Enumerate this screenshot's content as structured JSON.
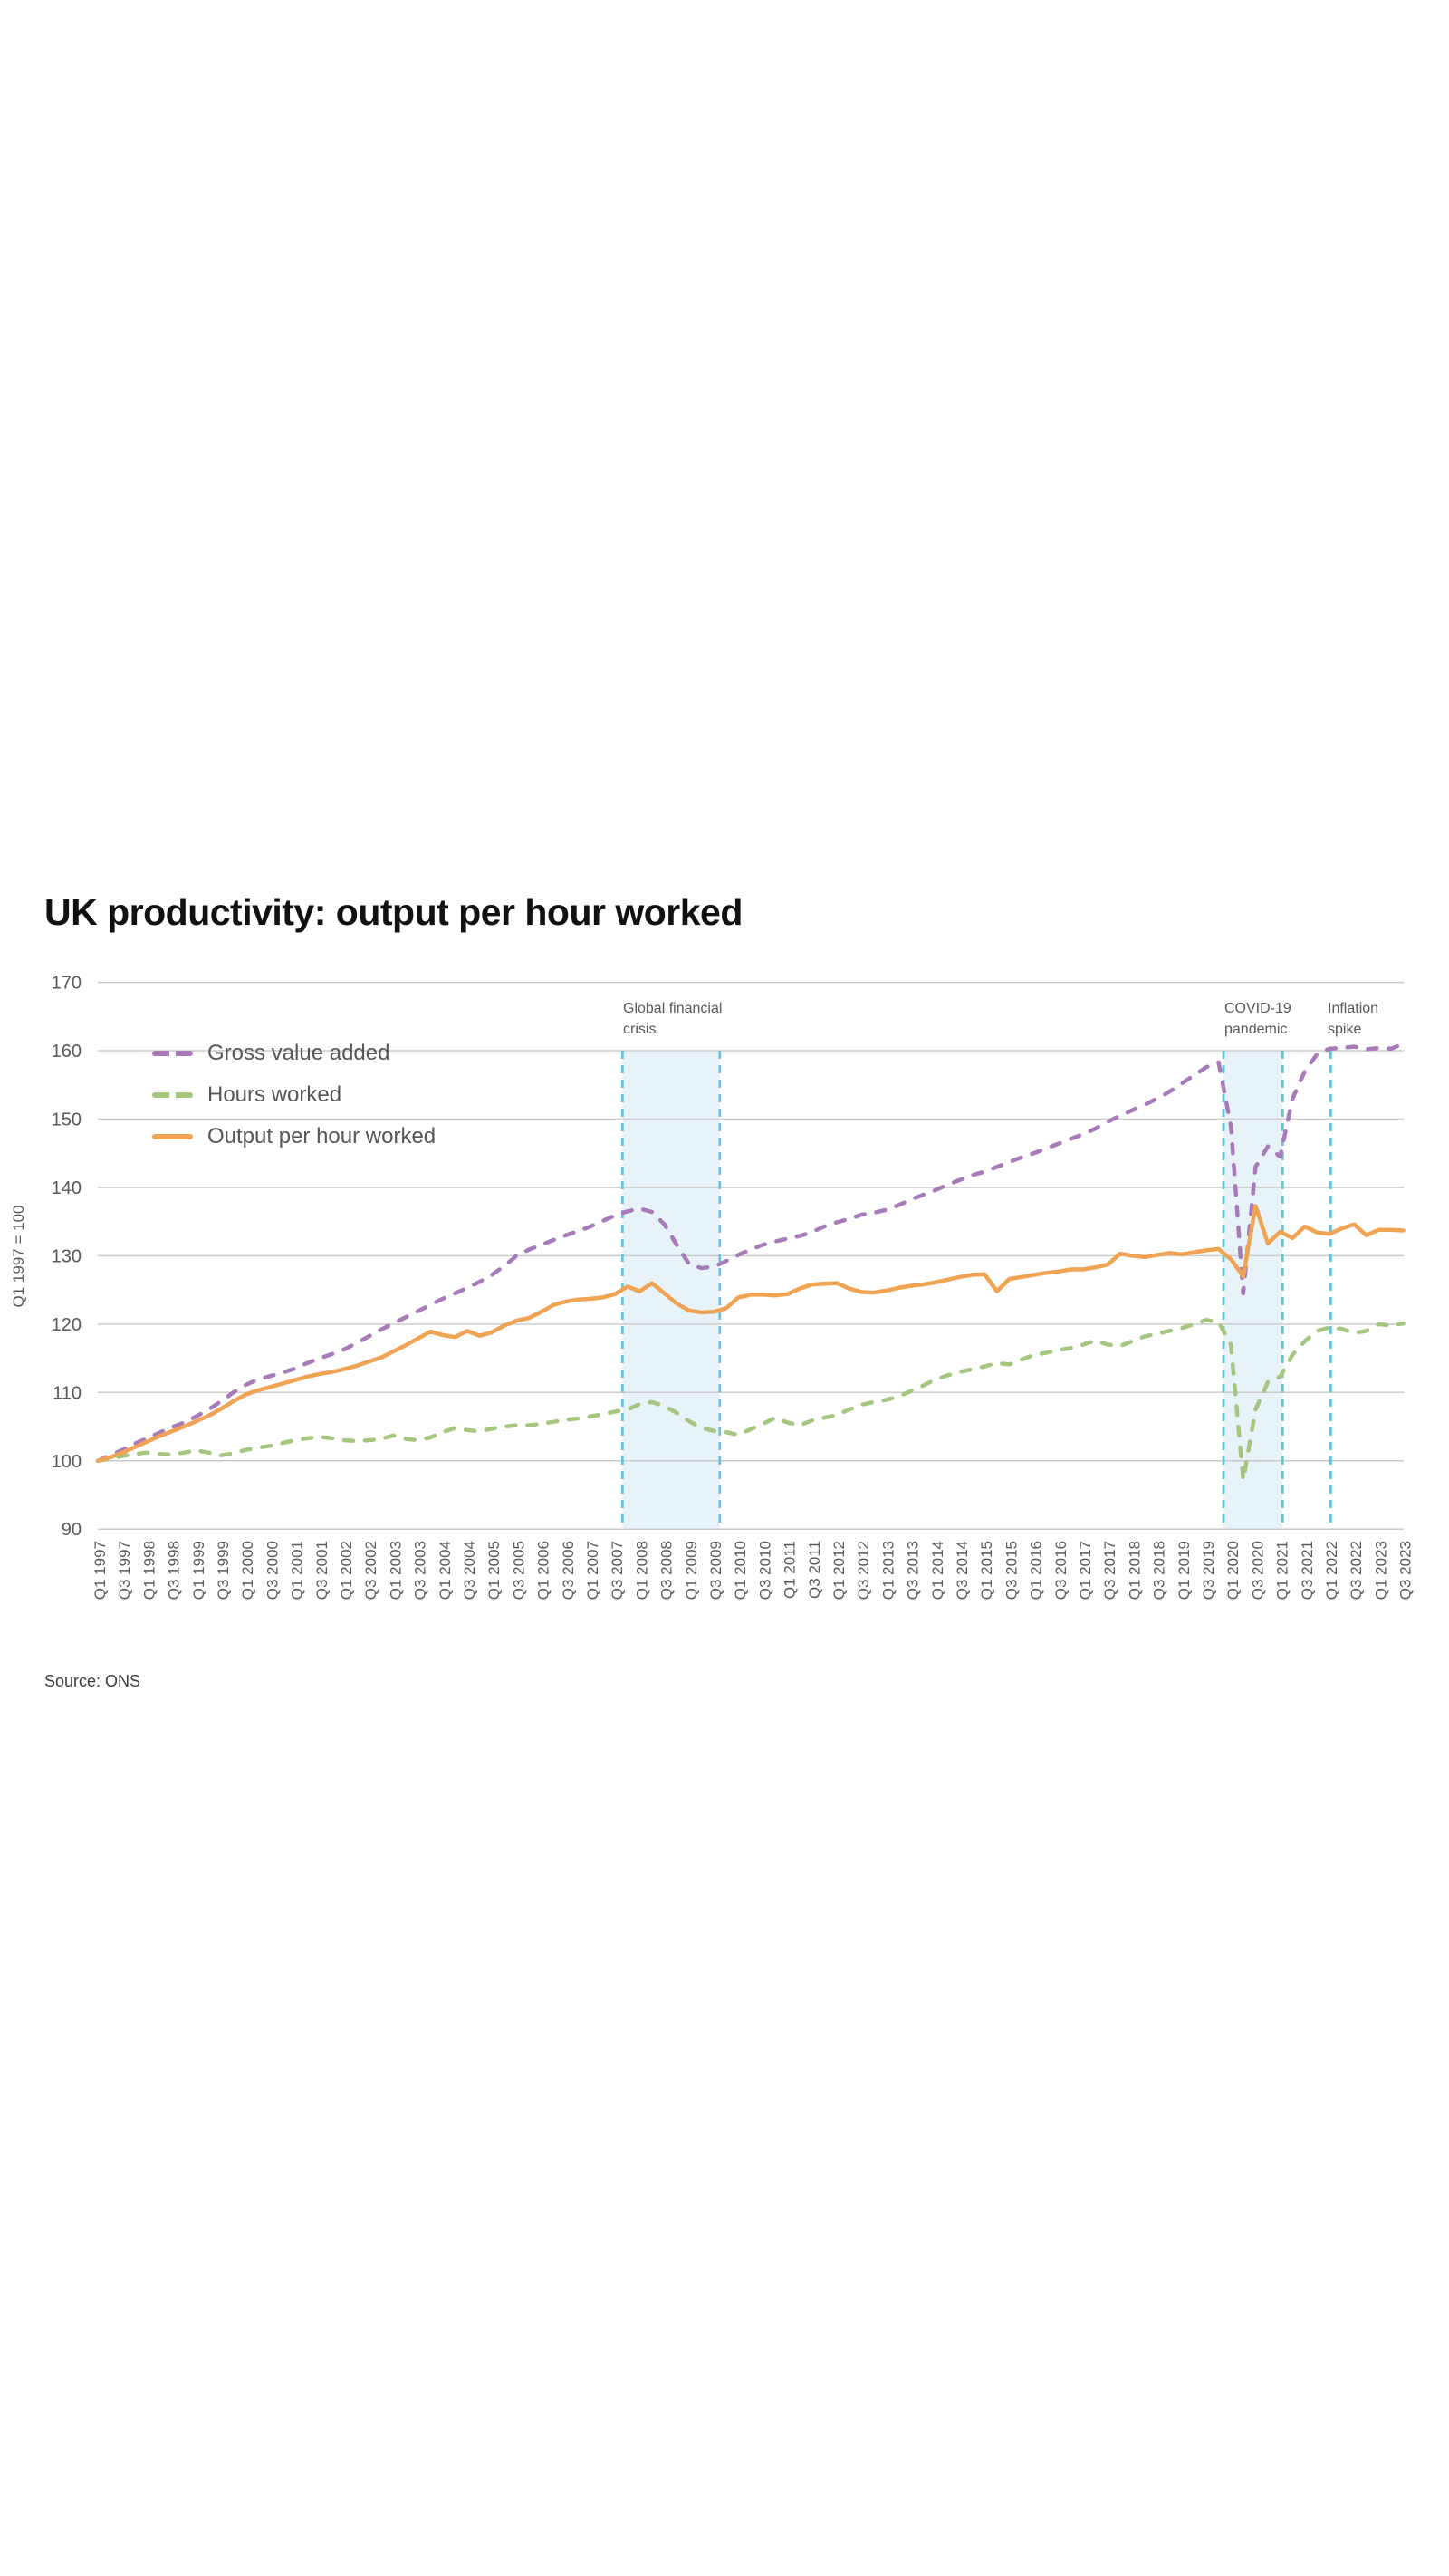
{
  "page": {
    "title": "UK productivity: output per hour worked",
    "source": "Source: ONS"
  },
  "y_axis": {
    "title": "Q1 1997 = 100",
    "min": 90,
    "max": 170,
    "step": 10
  },
  "legend": {
    "items": [
      {
        "label": "Gross value added",
        "color": "#a87ab9",
        "dashed": true
      },
      {
        "label": "Hours worked",
        "color": "#a4c67f",
        "dashed": true
      },
      {
        "label": "Output per hour worked",
        "color": "#f0a353",
        "dashed": false
      }
    ]
  },
  "annotations": [
    {
      "id": "gfc",
      "line1": "Global financial",
      "line2": "crisis"
    },
    {
      "id": "covid",
      "line1": "COVID-19",
      "line2": "pandemic"
    },
    {
      "id": "inflation",
      "line1": "Inflation",
      "line2": "spike"
    }
  ],
  "chart_data": {
    "type": "line",
    "title": "UK productivity: output per hour worked",
    "xlabel": "",
    "ylabel": "Q1 1997 = 100",
    "ylim": [
      90,
      170
    ],
    "y_step": 10,
    "grid": true,
    "grid_color": "#cbcbcb",
    "band_fill": "#e7f3f8",
    "band_border": "#68c4da",
    "x_tick_labels": [
      "Q1 1997",
      "Q3 1997",
      "Q1 1998",
      "Q3 1998",
      "Q1 1999",
      "Q3 1999",
      "Q1 2000",
      "Q3 2000",
      "Q1 2001",
      "Q3 2001",
      "Q1 2002",
      "Q3 2002",
      "Q1 2003",
      "Q3 2003",
      "Q1 2004",
      "Q3 2004",
      "Q1 2005",
      "Q3 2005",
      "Q1 2006",
      "Q3 2006",
      "Q1 2007",
      "Q3 2007",
      "Q1 2008",
      "Q3 2008",
      "Q1 2009",
      "Q3 2009",
      "Q1 2010",
      "Q3 2010",
      "Q1 2011",
      "Q3 2011",
      "Q1 2012",
      "Q3 2012",
      "Q1 2013",
      "Q3 2013",
      "Q1 2014",
      "Q3 2014",
      "Q1 2015",
      "Q3 2015",
      "Q1 2016",
      "Q3 2016",
      "Q1 2017",
      "Q3 2017",
      "Q1 2018",
      "Q3 2018",
      "Q1 2019",
      "Q3 2019",
      "Q1 2020",
      "Q3 2020",
      "Q1 2021",
      "Q3 2021",
      "Q1 2022",
      "Q3 2022",
      "Q1 2023",
      "Q3 2023"
    ],
    "bands": [
      {
        "label": "Global financial crisis",
        "start_q": 42.6,
        "end_q": 50.5
      },
      {
        "label": "COVID-19 pandemic",
        "start_q": 91.4,
        "end_q": 96.2
      }
    ],
    "event_lines": [
      {
        "label": "Inflation spike",
        "q": 100.1
      }
    ],
    "series": [
      {
        "name": "Gross value added",
        "color": "#a87ab9",
        "dashed": true,
        "values": [
          100,
          100.8,
          101.6,
          102.5,
          103.3,
          104.1,
          104.9,
          105.6,
          106.5,
          107.5,
          108.7,
          110,
          111.1,
          111.9,
          112.4,
          112.9,
          113.5,
          114.3,
          115,
          115.6,
          116.3,
          117.2,
          118.2,
          119.2,
          120.1,
          121,
          121.9,
          122.8,
          123.7,
          124.5,
          125.3,
          126.2,
          127.2,
          128.5,
          130,
          130.9,
          131.6,
          132.3,
          133,
          133.6,
          134.3,
          135.1,
          135.9,
          136.5,
          136.9,
          136.4,
          134.6,
          131.6,
          128.8,
          128.2,
          128.4,
          129.2,
          130.1,
          130.9,
          131.6,
          132.1,
          132.5,
          132.9,
          133.5,
          134.3,
          134.9,
          135.4,
          136,
          136.3,
          136.7,
          137.4,
          138.2,
          138.9,
          139.6,
          140.4,
          141.1,
          141.8,
          142.3,
          143,
          143.7,
          144.4,
          145,
          145.7,
          146.4,
          147.1,
          147.8,
          148.6,
          149.6,
          150.5,
          151.3,
          152.1,
          153,
          154,
          155.2,
          156.4,
          157.6,
          158.3,
          149,
          124.5,
          143,
          146,
          144.5,
          153,
          157,
          159.5,
          160.3,
          160.4,
          160.6,
          160.2,
          160.4,
          160.3,
          161
        ]
      },
      {
        "name": "Hours worked",
        "color": "#a4c67f",
        "dashed": true,
        "values": [
          100,
          100.3,
          100.7,
          101,
          101.2,
          101,
          100.9,
          101.2,
          101.5,
          101.2,
          100.8,
          101.1,
          101.6,
          101.9,
          102.2,
          102.6,
          103,
          103.3,
          103.5,
          103.3,
          103,
          102.9,
          103,
          103.2,
          103.7,
          103.2,
          103,
          103.4,
          104.2,
          104.8,
          104.5,
          104.3,
          104.7,
          105,
          105.2,
          105.2,
          105.4,
          105.7,
          106,
          106.2,
          106.5,
          106.8,
          107.2,
          107.5,
          108.3,
          108.6,
          108,
          107,
          105.8,
          104.8,
          104.4,
          104.2,
          103.8,
          104.6,
          105.4,
          106.3,
          105.6,
          105.2,
          105.9,
          106.3,
          106.7,
          107.5,
          108.2,
          108.6,
          108.9,
          109.4,
          110.2,
          111,
          111.9,
          112.5,
          113,
          113.4,
          113.8,
          114.3,
          114.1,
          114.8,
          115.5,
          115.8,
          116.2,
          116.5,
          117,
          117.6,
          117,
          116.8,
          117.5,
          118.2,
          118.6,
          119,
          119.4,
          120,
          120.6,
          120.3,
          117,
          97.2,
          107.5,
          111.5,
          112.3,
          115.5,
          117.5,
          119,
          119.5,
          119.3,
          118.7,
          119,
          120,
          119.8,
          120.1
        ]
      },
      {
        "name": "Output per hour worked",
        "color": "#f0a353",
        "dashed": false,
        "values": [
          100,
          100.5,
          101.2,
          102,
          102.8,
          103.6,
          104.3,
          105,
          105.8,
          106.6,
          107.6,
          108.7,
          109.7,
          110.3,
          110.8,
          111.3,
          111.8,
          112.3,
          112.7,
          113,
          113.4,
          113.9,
          114.5,
          115.1,
          116,
          116.9,
          117.9,
          118.9,
          118.4,
          118.1,
          119,
          118.3,
          118.8,
          119.8,
          120.5,
          120.9,
          121.8,
          122.8,
          123.3,
          123.6,
          123.7,
          123.9,
          124.4,
          125.5,
          124.8,
          126,
          124.5,
          123,
          122,
          121.7,
          121.8,
          122.3,
          123.9,
          124.3,
          124.3,
          124.2,
          124.4,
          125.2,
          125.8,
          125.9,
          126,
          125.2,
          124.7,
          124.6,
          124.9,
          125.3,
          125.6,
          125.8,
          126.1,
          126.5,
          126.9,
          127.2,
          127.3,
          124.8,
          126.6,
          126.9,
          127.2,
          127.5,
          127.7,
          128,
          128,
          128.3,
          128.7,
          130.3,
          130,
          129.8,
          130.1,
          130.4,
          130.2,
          130.5,
          130.8,
          131,
          129.5,
          127,
          137.3,
          131.8,
          133.5,
          132.6,
          134.3,
          133.4,
          133.2,
          134,
          134.6,
          133,
          133.8,
          133.8,
          133.7
        ]
      }
    ]
  }
}
